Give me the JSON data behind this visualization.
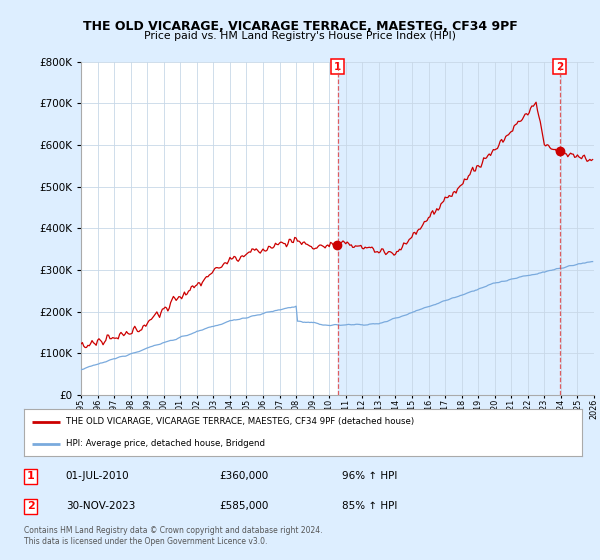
{
  "title": "THE OLD VICARAGE, VICARAGE TERRACE, MAESTEG, CF34 9PF",
  "subtitle": "Price paid vs. HM Land Registry's House Price Index (HPI)",
  "red_label": "THE OLD VICARAGE, VICARAGE TERRACE, MAESTEG, CF34 9PF (detached house)",
  "blue_label": "HPI: Average price, detached house, Bridgend",
  "annotation1_date": "01-JUL-2010",
  "annotation1_price": "£360,000",
  "annotation1_hpi": "96% ↑ HPI",
  "annotation2_date": "30-NOV-2023",
  "annotation2_price": "£585,000",
  "annotation2_hpi": "85% ↑ HPI",
  "footer": "Contains HM Land Registry data © Crown copyright and database right 2024.\nThis data is licensed under the Open Government Licence v3.0.",
  "red_color": "#cc0000",
  "blue_color": "#7aaadd",
  "background_color": "#ddeeff",
  "plot_bg_color": "#ffffff",
  "shade_color": "#ddeeff",
  "vline_color": "#dd4444",
  "ylim": [
    0,
    800000
  ],
  "xlim_start": 1995,
  "xlim_end": 2026,
  "sale1_year": 2010.5,
  "sale2_year": 2023.917
}
